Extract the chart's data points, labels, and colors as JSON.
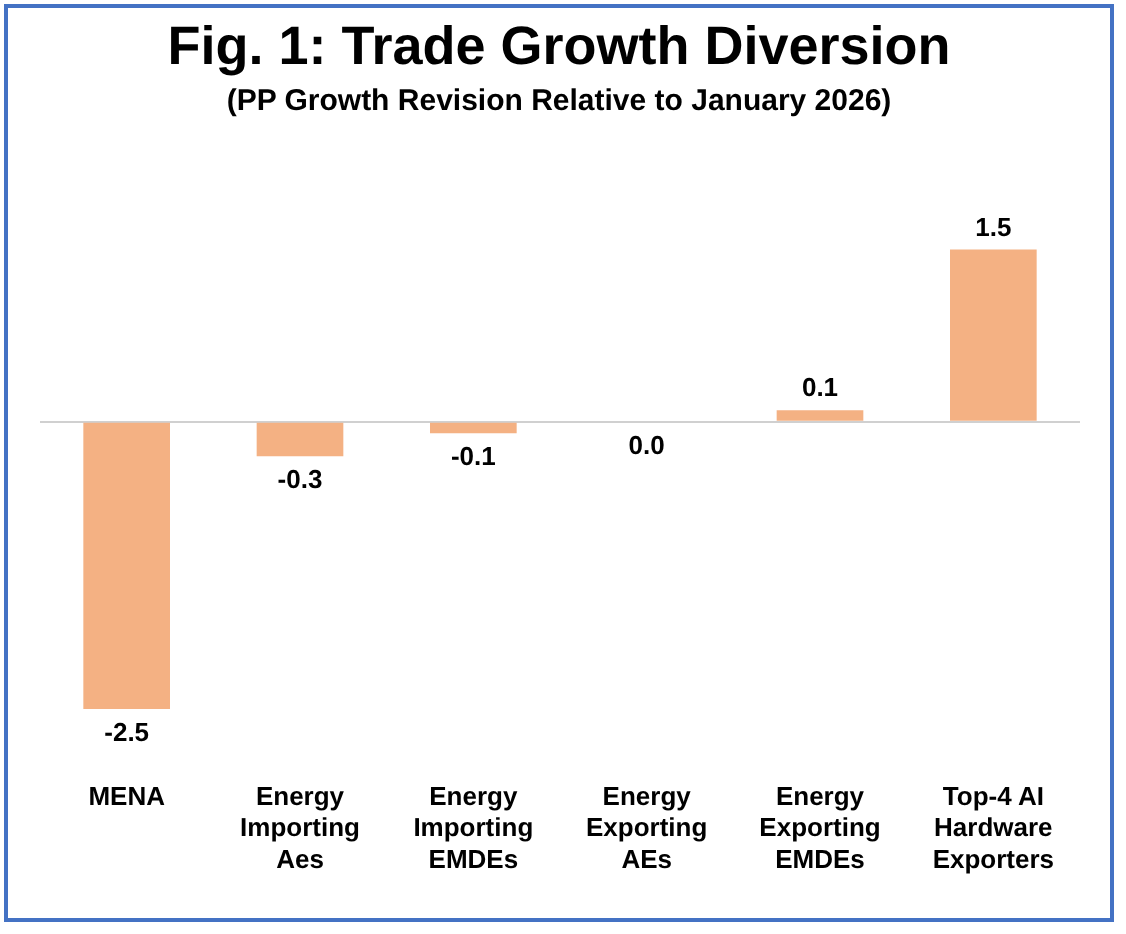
{
  "chart_data": {
    "type": "bar",
    "title": "Fig. 1: Trade Growth Diversion",
    "subtitle": "(PP Growth Revision Relative to January 2026)",
    "categories": [
      "MENA",
      "Energy Importing Aes",
      "Energy Importing EMDEs",
      "Energy Exporting AEs",
      "Energy Exporting EMDEs",
      "Top-4 AI Hardware Exporters"
    ],
    "values": [
      -2.5,
      -0.3,
      -0.1,
      0.0,
      0.1,
      1.5
    ],
    "color": "#f4b183",
    "value_labels": [
      "-2.5",
      "-0.3",
      "-0.1",
      "0.0",
      "0.1",
      "1.5"
    ],
    "relative": false,
    "tick_labels": "x",
    "grid": false,
    "legend": false
  }
}
